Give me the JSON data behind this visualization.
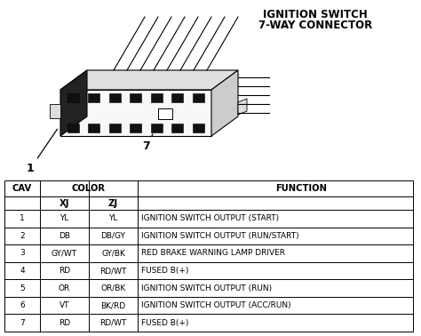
{
  "title_line1": "IGNITION SWITCH",
  "title_line2": "7-WAY CONNECTOR",
  "bg_color": "#ffffff",
  "rows": [
    {
      "cav": "1",
      "xj": "YL",
      "zj": "YL",
      "function": "IGNITION SWITCH OUTPUT (START)"
    },
    {
      "cav": "2",
      "xj": "DB",
      "zj": "DB/GY",
      "function": "IGNITION SWITCH OUTPUT (RUN/START)"
    },
    {
      "cav": "3",
      "xj": "GY/WT",
      "zj": "GY/BK",
      "function": "RED BRAKE WARNING LAMP DRIVER"
    },
    {
      "cav": "4",
      "xj": "RD",
      "zj": "RD/WT",
      "function": "FUSED B(+)"
    },
    {
      "cav": "5",
      "xj": "OR",
      "zj": "OR/BK",
      "function": "IGNITION SWITCH OUTPUT (RUN)"
    },
    {
      "cav": "6",
      "xj": "VT",
      "zj": "BK/RD",
      "function": "IGNITION SWITCH OUTPUT (ACC/RUN)"
    },
    {
      "cav": "7",
      "xj": "RD",
      "zj": "RD/WT",
      "function": "FUSED B(+)"
    }
  ],
  "label1": "1",
  "label7": "7",
  "table_font_size": 6.5,
  "header_font_size": 7.2,
  "title_font_size": 8.5,
  "line_color": "#000000",
  "diagram_lw": 0.8
}
